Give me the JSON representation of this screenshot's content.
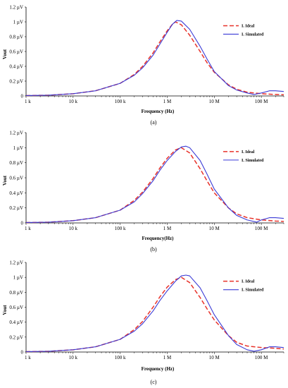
{
  "colors": {
    "ideal": "#e8322a",
    "simulated": "#3b3bd6",
    "axis": "#000000"
  },
  "chart_data": [
    {
      "type": "line",
      "panel_label": "(a)",
      "xlabel": "Frequency (Hz)",
      "ylabel": "Vout",
      "xscale": "log",
      "xlim": [
        1000,
        300000000
      ],
      "ylim": [
        0,
        1.2
      ],
      "xticks": [
        1000,
        10000,
        100000,
        1000000,
        10000000,
        100000000
      ],
      "xticklabels": [
        "1 k",
        "10 k",
        "100 k",
        "1 M",
        "10 M",
        "100 M"
      ],
      "yticks": [
        0,
        0.2,
        0.4,
        0.6,
        0.8,
        1.0,
        1.2
      ],
      "yticklabels": [
        "0",
        "0.2 µV",
        "0.4 µV",
        "0.6 µV",
        "0.8 µV",
        "1 µV",
        "1.2 µV"
      ],
      "legend": "top-right",
      "series": [
        {
          "name": "I. Ideal",
          "style": "dashed",
          "x": [
            1000,
            3000,
            10000,
            30000,
            100000,
            200000,
            300000,
            500000,
            700000,
            1000000,
            1300000,
            1500000,
            2000000,
            3000000,
            5000000,
            7000000,
            10000000,
            20000000,
            30000000,
            50000000,
            100000000,
            200000000,
            300000000
          ],
          "y": [
            0.005,
            0.01,
            0.03,
            0.07,
            0.17,
            0.29,
            0.4,
            0.58,
            0.73,
            0.88,
            0.97,
            1.0,
            0.96,
            0.82,
            0.6,
            0.45,
            0.32,
            0.15,
            0.09,
            0.05,
            0.03,
            0.02,
            0.015
          ]
        },
        {
          "name": "I. Simulated",
          "style": "solid",
          "x": [
            1000,
            3000,
            10000,
            30000,
            100000,
            200000,
            300000,
            500000,
            700000,
            1000000,
            1300000,
            1600000,
            2000000,
            3000000,
            5000000,
            7000000,
            10000000,
            20000000,
            30000000,
            50000000,
            70000000,
            100000000,
            150000000,
            200000000,
            300000000
          ],
          "y": [
            0.005,
            0.01,
            0.03,
            0.07,
            0.17,
            0.28,
            0.38,
            0.55,
            0.7,
            0.86,
            0.97,
            1.02,
            1.01,
            0.9,
            0.67,
            0.5,
            0.33,
            0.14,
            0.08,
            0.04,
            0.02,
            0.04,
            0.07,
            0.07,
            0.06
          ]
        }
      ]
    },
    {
      "type": "line",
      "panel_label": "(b)",
      "xlabel": "Frequency(Hz)",
      "ylabel": "Vout",
      "xscale": "log",
      "xlim": [
        1000,
        300000000
      ],
      "ylim": [
        0,
        1.2
      ],
      "xticks": [
        1000,
        10000,
        100000,
        1000000,
        10000000,
        100000000
      ],
      "xticklabels": [
        "1 k",
        "10 k",
        "100 k",
        "1 M",
        "10 M",
        "100 M"
      ],
      "yticks": [
        0,
        0.2,
        0.4,
        0.6,
        0.8,
        1.0,
        1.2
      ],
      "yticklabels": [
        "0",
        "0.2 µV",
        "0.4 µV",
        "0.6 µV",
        "0.8 µV",
        "1 µV",
        "1.2 µV"
      ],
      "legend": "top-right",
      "series": [
        {
          "name": "I. Ideal",
          "style": "dashed",
          "x": [
            1000,
            3000,
            10000,
            30000,
            100000,
            200000,
            300000,
            500000,
            700000,
            1000000,
            1500000,
            2000000,
            3000000,
            5000000,
            7000000,
            10000000,
            20000000,
            30000000,
            50000000,
            100000000,
            200000000,
            300000000
          ],
          "y": [
            0.005,
            0.01,
            0.03,
            0.07,
            0.17,
            0.3,
            0.41,
            0.59,
            0.73,
            0.86,
            0.97,
            1.0,
            0.93,
            0.72,
            0.56,
            0.4,
            0.2,
            0.12,
            0.07,
            0.04,
            0.025,
            0.02
          ]
        },
        {
          "name": "I. Simulated",
          "style": "solid",
          "x": [
            1000,
            3000,
            10000,
            30000,
            100000,
            200000,
            300000,
            500000,
            700000,
            1000000,
            1500000,
            2000000,
            2500000,
            3000000,
            5000000,
            7000000,
            10000000,
            20000000,
            30000000,
            50000000,
            80000000,
            100000000,
            150000000,
            200000000,
            300000000
          ],
          "y": [
            0.005,
            0.01,
            0.03,
            0.07,
            0.17,
            0.28,
            0.39,
            0.56,
            0.7,
            0.83,
            0.95,
            1.01,
            1.02,
            1.0,
            0.83,
            0.65,
            0.45,
            0.2,
            0.1,
            0.04,
            0.01,
            0.04,
            0.07,
            0.07,
            0.06
          ]
        }
      ]
    },
    {
      "type": "line",
      "panel_label": "(c)",
      "xlabel": "Frequency (Hz)",
      "ylabel": "Vout",
      "xscale": "log",
      "xlim": [
        1000,
        300000000
      ],
      "ylim": [
        0,
        1.2
      ],
      "xticks": [
        1000,
        10000,
        100000,
        1000000,
        10000000,
        100000000
      ],
      "xticklabels": [
        "1 k",
        "10 k",
        "100 k",
        "1 M",
        "10 M",
        "100 M"
      ],
      "yticks": [
        0,
        0.2,
        0.4,
        0.6,
        0.8,
        1.0,
        1.2
      ],
      "yticklabels": [
        "0",
        "0.2 µV",
        "0.4 µV",
        "0.6 µV",
        "0.8 µV",
        "1 µV",
        "1.2 µV"
      ],
      "legend": "top-right",
      "series": [
        {
          "name": "I. Ideal",
          "style": "dashed",
          "x": [
            1000,
            3000,
            10000,
            30000,
            100000,
            200000,
            300000,
            500000,
            700000,
            1000000,
            1500000,
            2000000,
            3000000,
            5000000,
            7000000,
            10000000,
            20000000,
            30000000,
            50000000,
            100000000,
            200000000,
            300000000
          ],
          "y": [
            0.005,
            0.01,
            0.03,
            0.07,
            0.17,
            0.3,
            0.41,
            0.6,
            0.74,
            0.87,
            0.97,
            1.0,
            0.93,
            0.73,
            0.58,
            0.43,
            0.22,
            0.13,
            0.08,
            0.06,
            0.05,
            0.04
          ]
        },
        {
          "name": "I. Simulated",
          "style": "solid",
          "x": [
            1000,
            3000,
            10000,
            30000,
            100000,
            200000,
            300000,
            500000,
            700000,
            1000000,
            1500000,
            2000000,
            2500000,
            3000000,
            5000000,
            7000000,
            10000000,
            20000000,
            30000000,
            50000000,
            70000000,
            100000000,
            150000000,
            200000000,
            300000000
          ],
          "y": [
            0.005,
            0.01,
            0.03,
            0.07,
            0.17,
            0.28,
            0.38,
            0.55,
            0.69,
            0.82,
            0.95,
            1.02,
            1.03,
            1.02,
            0.86,
            0.69,
            0.5,
            0.22,
            0.1,
            0.03,
            0.01,
            0.03,
            0.07,
            0.07,
            0.06
          ]
        }
      ]
    }
  ]
}
